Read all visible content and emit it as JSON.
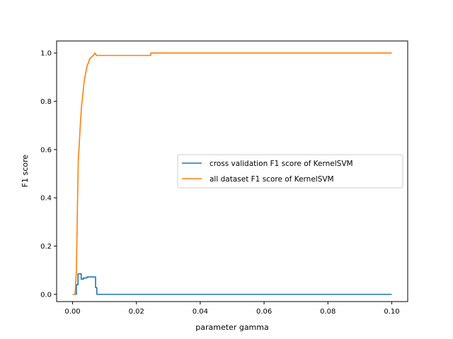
{
  "chart_data": {
    "type": "line",
    "title": "",
    "xlabel": "parameter gamma",
    "ylabel": "F1 score",
    "xlim": [
      -0.005,
      0.105
    ],
    "ylim": [
      -0.03,
      1.05
    ],
    "xticks": [
      0.0,
      0.02,
      0.04,
      0.06,
      0.08,
      0.1
    ],
    "xtick_labels": [
      "0.00",
      "0.02",
      "0.04",
      "0.06",
      "0.08",
      "0.10"
    ],
    "yticks": [
      0.0,
      0.2,
      0.4,
      0.6,
      0.8,
      1.0
    ],
    "ytick_labels": [
      "0.0",
      "0.2",
      "0.4",
      "0.6",
      "0.8",
      "1.0"
    ],
    "grid": false,
    "legend_position": "center-right",
    "series": [
      {
        "name": "cross validation F1 score of KernelSVM",
        "color": "#1f77b4",
        "x": [
          0.0,
          0.0012,
          0.0012,
          0.0017,
          0.0017,
          0.0027,
          0.0027,
          0.0034,
          0.0034,
          0.0045,
          0.0045,
          0.0056,
          0.0056,
          0.0072,
          0.0072,
          0.0076,
          0.0076,
          0.1
        ],
        "y": [
          0.0,
          0.0,
          0.04,
          0.04,
          0.085,
          0.085,
          0.063,
          0.063,
          0.068,
          0.068,
          0.072,
          0.072,
          0.072,
          0.072,
          0.028,
          0.028,
          0.0,
          0.0
        ]
      },
      {
        "name": "all dataset F1 score of KernelSVM",
        "color": "#ff7f0e",
        "x": [
          0.0,
          0.0008,
          0.0012,
          0.0015,
          0.0018,
          0.002,
          0.0022,
          0.0025,
          0.0028,
          0.003,
          0.0033,
          0.0036,
          0.004,
          0.0043,
          0.0046,
          0.005,
          0.0053,
          0.0057,
          0.006,
          0.0065,
          0.007,
          0.0075,
          0.008,
          0.01,
          0.015,
          0.02,
          0.0245,
          0.0245,
          0.03,
          0.05,
          0.07,
          0.09,
          0.1
        ],
        "y": [
          0.0,
          0.0,
          0.1,
          0.35,
          0.56,
          0.6,
          0.65,
          0.72,
          0.78,
          0.8,
          0.84,
          0.88,
          0.91,
          0.93,
          0.95,
          0.96,
          0.975,
          0.98,
          0.985,
          0.99,
          1.0,
          0.99,
          0.99,
          0.99,
          0.99,
          0.99,
          0.99,
          1.0,
          1.0,
          1.0,
          1.0,
          1.0,
          1.0
        ]
      }
    ]
  }
}
